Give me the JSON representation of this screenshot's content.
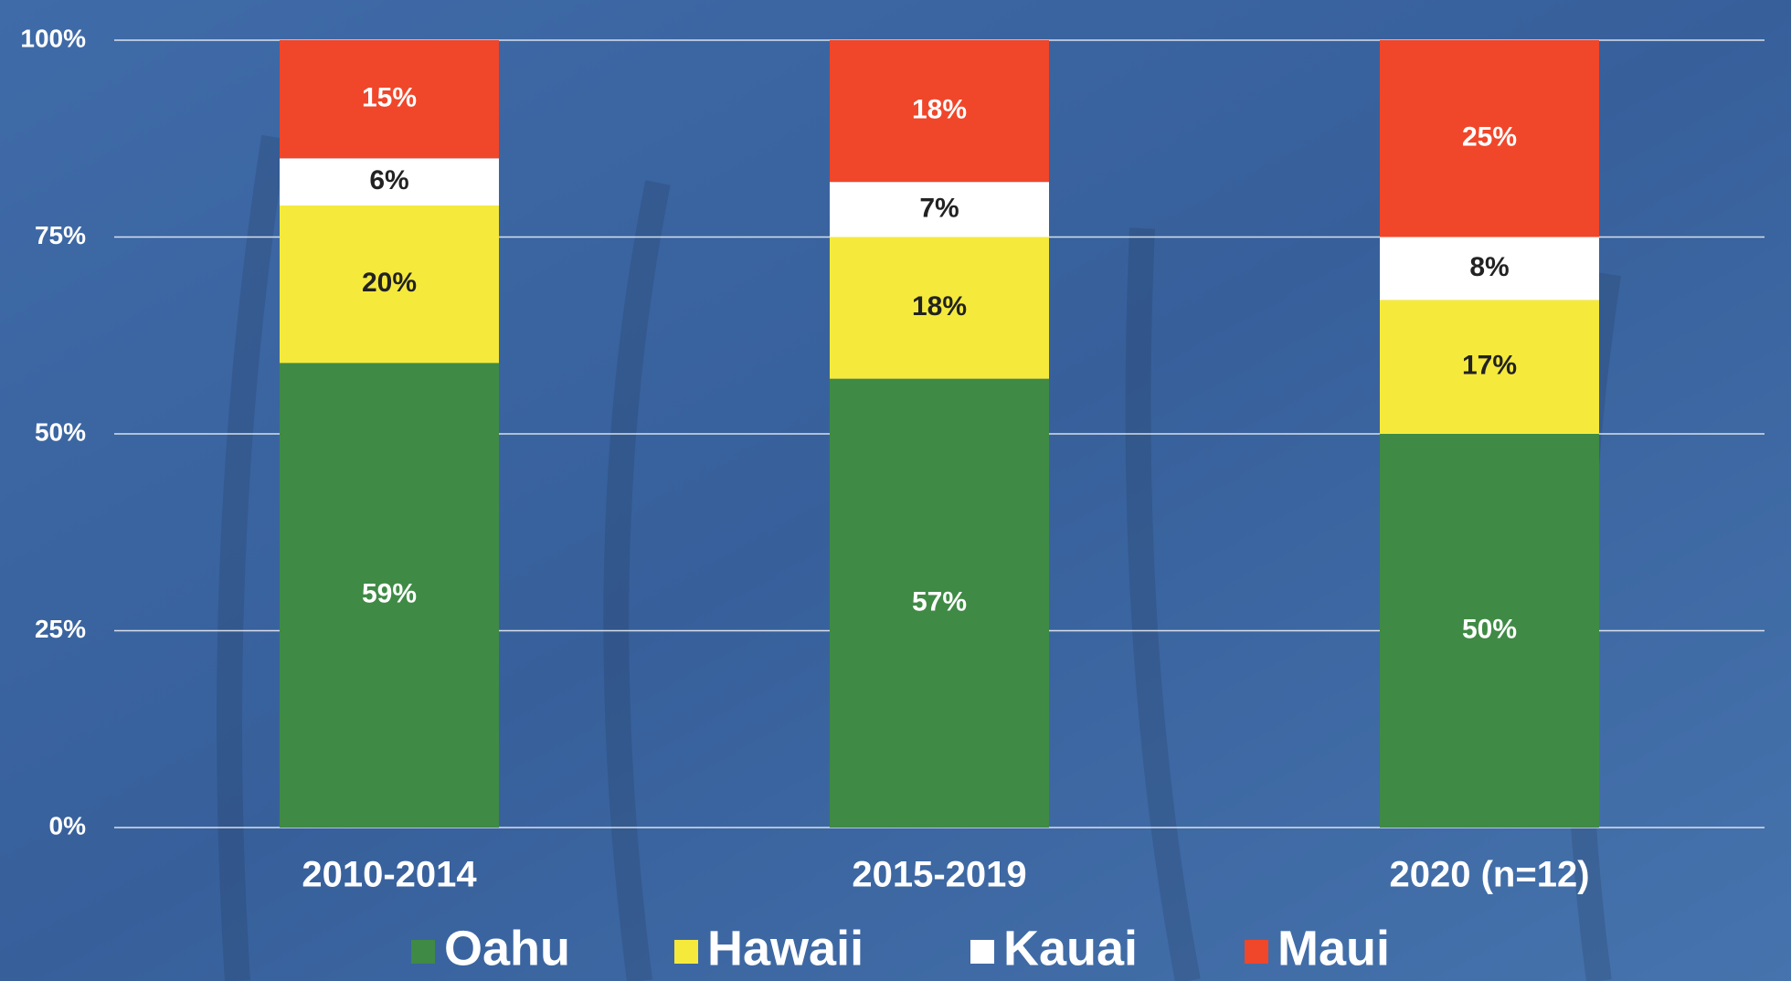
{
  "chart_data": {
    "type": "stacked_bar",
    "categories": [
      "2010-2014",
      "2015-2019",
      "2020 (n=12)"
    ],
    "series": [
      {
        "name": "Oahu",
        "color": "#3f8a45",
        "label_color": "#ffffff",
        "values": [
          59,
          57,
          50
        ],
        "value_labels": [
          "59%",
          "57%",
          "50%"
        ]
      },
      {
        "name": "Hawaii",
        "color": "#f5ea3c",
        "label_color": "#222222",
        "values": [
          20,
          18,
          17
        ],
        "value_labels": [
          "20%",
          "18%",
          "17%"
        ]
      },
      {
        "name": "Kauai",
        "color": "#ffffff",
        "label_color": "#222222",
        "values": [
          6,
          7,
          8
        ],
        "value_labels": [
          "6%",
          "7%",
          "8%"
        ]
      },
      {
        "name": "Maui",
        "color": "#f0462a",
        "label_color": "#ffffff",
        "values": [
          15,
          18,
          25
        ],
        "value_labels": [
          "15%",
          "18%",
          "25%"
        ]
      }
    ],
    "ylim": [
      0,
      100
    ],
    "yticks": [
      {
        "value": 0,
        "label": "0%"
      },
      {
        "value": 25,
        "label": "25%"
      },
      {
        "value": 50,
        "label": "50%"
      },
      {
        "value": 75,
        "label": "75%"
      },
      {
        "value": 100,
        "label": "100%"
      }
    ],
    "grid": true,
    "legend": "bottom"
  }
}
